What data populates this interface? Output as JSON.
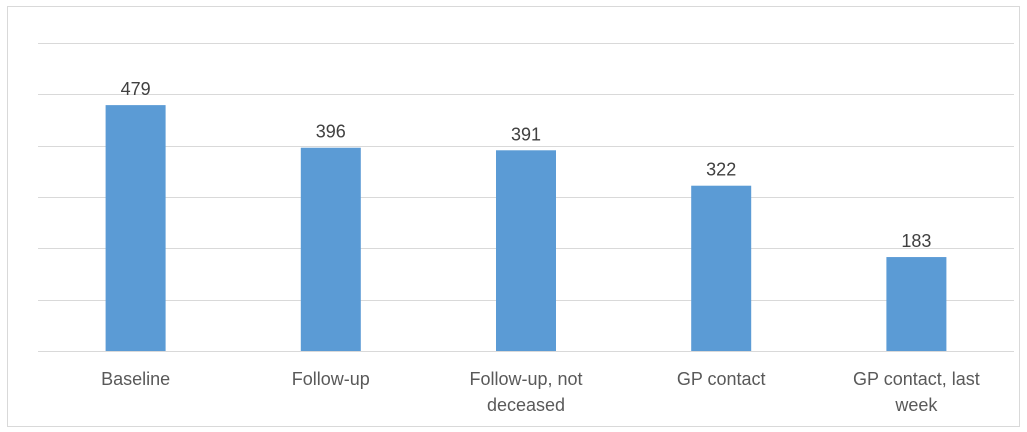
{
  "chart_data": {
    "type": "bar",
    "categories": [
      [
        "Baseline"
      ],
      [
        "Follow-up"
      ],
      [
        "Follow-up, not",
        "deceased"
      ],
      [
        "GP contact"
      ],
      [
        "GP contact, last",
        "week"
      ]
    ],
    "values": [
      479,
      396,
      391,
      322,
      183
    ],
    "data_labels": [
      "479",
      "396",
      "391",
      "322",
      "183"
    ],
    "ylim": [
      0,
      600
    ],
    "y_gridline_step": 100,
    "grid": true,
    "legend": "none",
    "title": "",
    "xlabel": "",
    "ylabel": "",
    "colors": {
      "bar": "#5b9bd5",
      "gridline": "#d9d9d9",
      "data_label": "#404040",
      "category_label": "#595959"
    }
  }
}
